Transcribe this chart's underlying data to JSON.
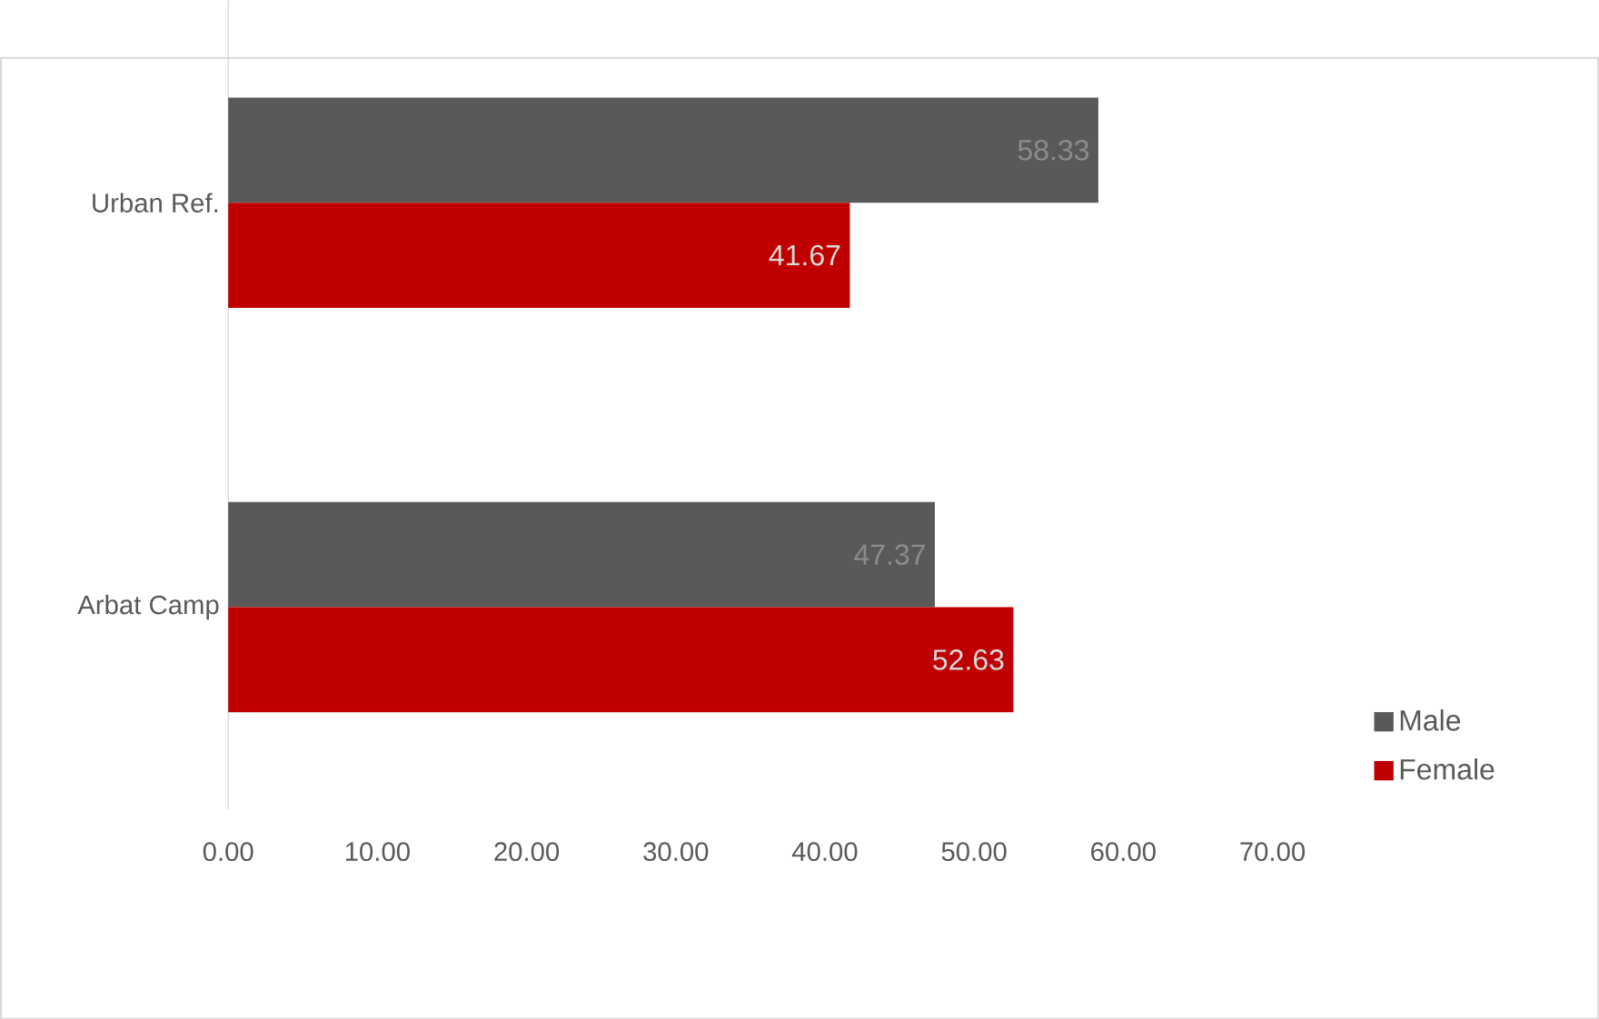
{
  "chart_data": {
    "type": "bar",
    "orientation": "horizontal",
    "categories": [
      "Urban Ref.",
      "Arbat Camp"
    ],
    "series": [
      {
        "name": "Male",
        "color": "#595959",
        "values": [
          58.33,
          47.37
        ]
      },
      {
        "name": "Female",
        "color": "#c00000",
        "values": [
          41.67,
          52.63
        ]
      }
    ],
    "xlim": [
      0,
      70
    ],
    "xticks": [
      {
        "value": 0,
        "label": "0.00"
      },
      {
        "value": 10,
        "label": "10.00"
      },
      {
        "value": 20,
        "label": "20.00"
      },
      {
        "value": 30,
        "label": "30.00"
      },
      {
        "value": 40,
        "label": "40.00"
      },
      {
        "value": 50,
        "label": "50.00"
      },
      {
        "value": 60,
        "label": "60.00"
      },
      {
        "value": 70,
        "label": "70.00"
      }
    ],
    "data_labels": true,
    "grid": false,
    "legend": "bottom right"
  }
}
